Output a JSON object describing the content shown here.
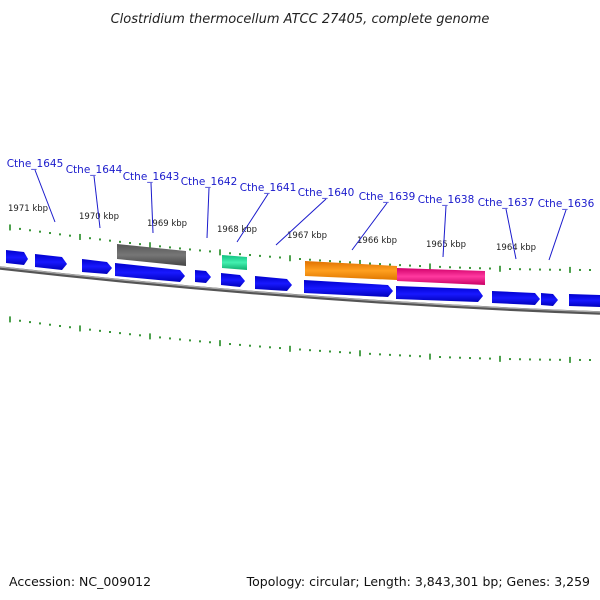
{
  "title": "Clostridium thermocellum ATCC 27405, complete genome",
  "footer": {
    "accession": "Accession: NC_009012",
    "summary": "Topology: circular; Length: 3,843,301 bp; Genes: 3,259"
  },
  "colors": {
    "cds": "#0000ee",
    "backbone": "#888888",
    "tick": "#228b22",
    "label": "#1a1acc",
    "feature_gray": "#666666",
    "feature_teal": "#2ee8a0",
    "feature_orange": "#ff8c00",
    "feature_magenta": "#ee1a8c"
  },
  "gene_labels": [
    "Cthe_1645",
    "Cthe_1644",
    "Cthe_1643",
    "Cthe_1642",
    "Cthe_1641",
    "Cthe_1640",
    "Cthe_1639",
    "Cthe_1638",
    "Cthe_1637",
    "Cthe_1636"
  ],
  "kbp_labels": [
    "1971 kbp",
    "1970 kbp",
    "1969 kbp",
    "1968 kbp",
    "1967 kbp",
    "1966 kbp",
    "1965 kbp",
    "1964 kbp"
  ]
}
